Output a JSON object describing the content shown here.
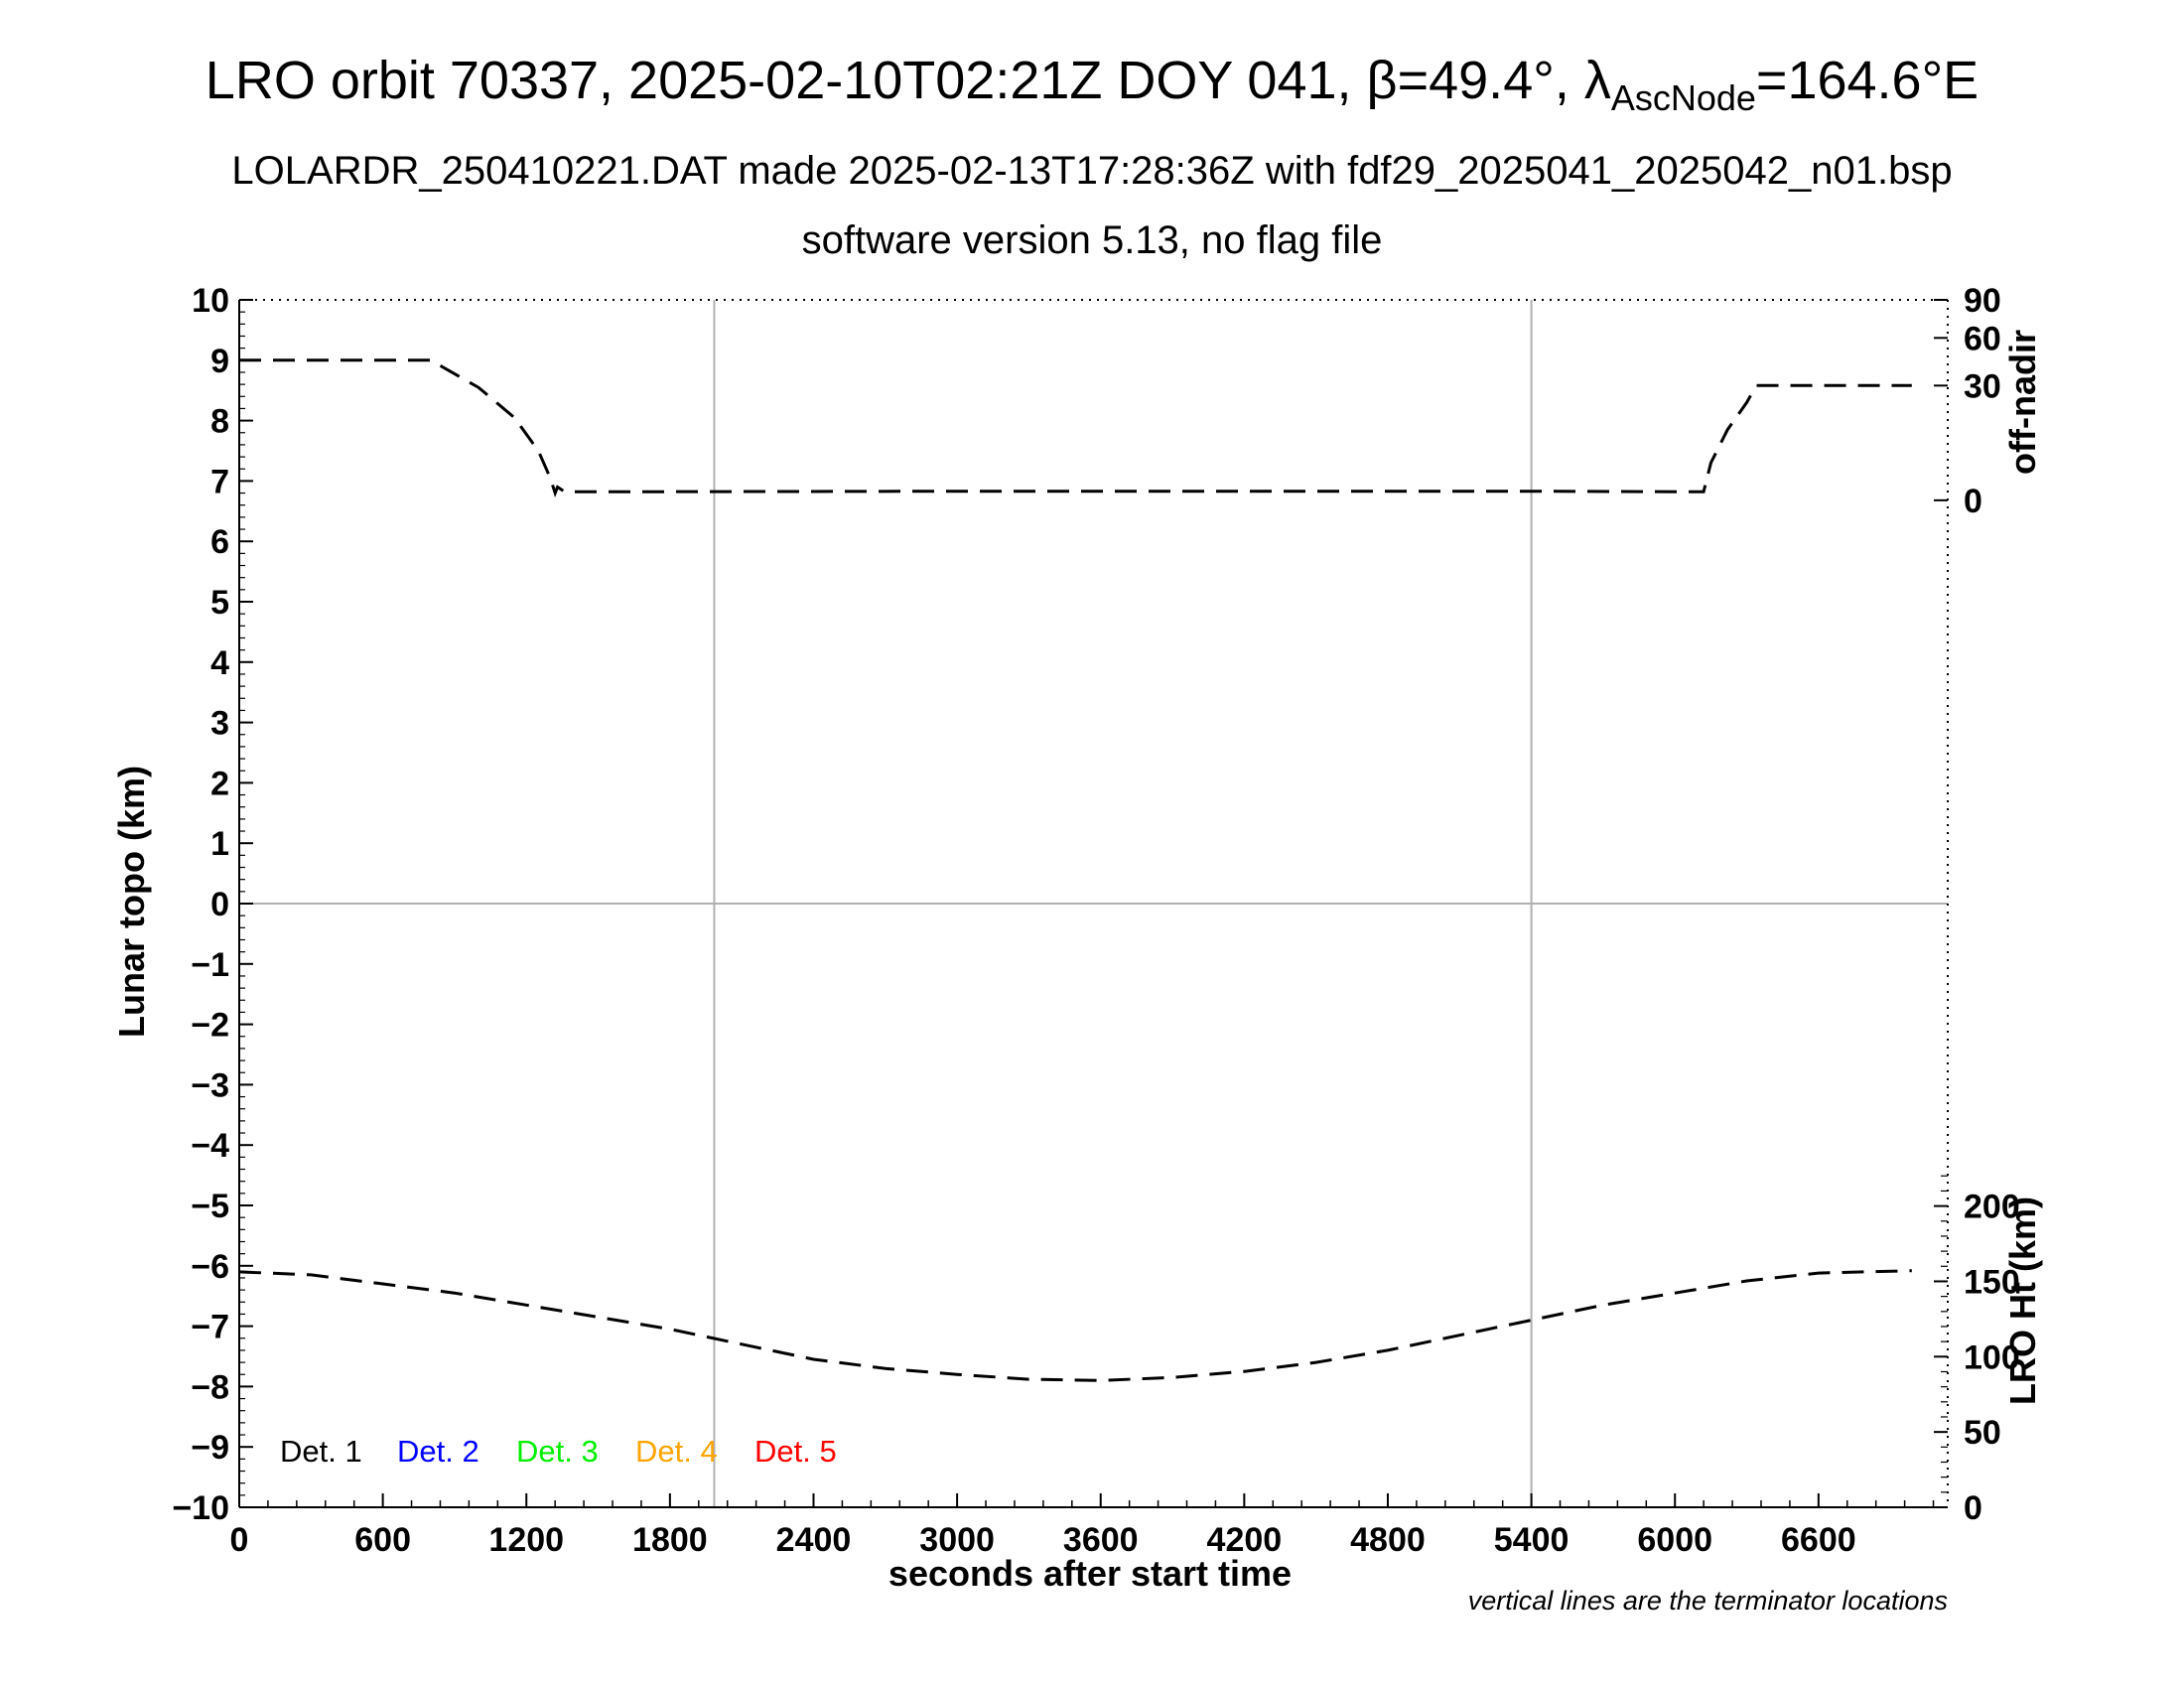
{
  "title": {
    "main_prefix": "LRO orbit 70337, 2025-02-10T02:21Z DOY 041, β=49.4°, λ",
    "main_sub": "AscNode",
    "main_suffix": "=164.6°E",
    "line2": "LOLARDR_250410221.DAT made 2025-02-13T17:28:36Z with fdf29_2025041_2025042_n01.bsp",
    "line3": "software version 5.13, no flag file"
  },
  "chart_data": {
    "type": "line",
    "xlabel": "seconds after start time",
    "ylabel_left": "Lunar topo (km)",
    "ylabel_right_top": "off-nadir",
    "ylabel_right_bottom": "LRO Ht (km)",
    "xlim": [
      0,
      7140
    ],
    "x_ticks": [
      "0",
      "600",
      "1200",
      "1800",
      "2400",
      "3000",
      "3600",
      "4200",
      "4800",
      "5400",
      "6000",
      "6600"
    ],
    "x_tick_values": [
      0,
      600,
      1200,
      1800,
      2400,
      3000,
      3600,
      4200,
      4800,
      5400,
      6000,
      6600
    ],
    "ylim_left": [
      -10,
      10
    ],
    "y_ticks_left": [
      "10",
      "9",
      "8",
      "7",
      "6",
      "5",
      "4",
      "3",
      "2",
      "1",
      "0",
      "−1",
      "−2",
      "−3",
      "−4",
      "−5",
      "−6",
      "−7",
      "−8",
      "−9",
      "−10"
    ],
    "y_tick_values_left": [
      10,
      9,
      8,
      7,
      6,
      5,
      4,
      3,
      2,
      1,
      0,
      -1,
      -2,
      -3,
      -4,
      -5,
      -6,
      -7,
      -8,
      -9,
      -10
    ],
    "off_nadir_ticks": [
      "90",
      "60",
      "30",
      "0"
    ],
    "off_nadir_tick_values": [
      90,
      60,
      30,
      0
    ],
    "height_ticks": [
      "200",
      "150",
      "100",
      "50",
      "0"
    ],
    "height_tick_values": [
      200,
      150,
      100,
      50,
      0
    ],
    "terminator_lines_x": [
      1985,
      5400
    ],
    "zero_line_y": 0,
    "legend": [
      {
        "label": "Det. 1",
        "color": "#000000"
      },
      {
        "label": "Det. 2",
        "color": "#0000ff"
      },
      {
        "label": "Det. 3",
        "color": "#00ee00"
      },
      {
        "label": "Det. 4",
        "color": "#ffa500"
      },
      {
        "label": "Det. 5",
        "color": "#ff0000"
      }
    ],
    "series": [
      {
        "axis": "off-nadir",
        "style": "dashed",
        "color": "#000000",
        "points": [
          [
            0,
            9.0
          ],
          [
            800,
            9.0
          ],
          [
            1000,
            8.55
          ],
          [
            1150,
            8.05
          ],
          [
            1250,
            7.5
          ],
          [
            1300,
            7.05
          ],
          [
            1320,
            6.8
          ],
          [
            1330,
            6.9
          ],
          [
            1360,
            6.82
          ],
          [
            1500,
            6.82
          ],
          [
            3000,
            6.83
          ],
          [
            5400,
            6.83
          ],
          [
            6120,
            6.82
          ],
          [
            6150,
            7.3
          ],
          [
            6220,
            7.85
          ],
          [
            6300,
            8.3
          ],
          [
            6340,
            8.58
          ],
          [
            6500,
            8.58
          ],
          [
            6990,
            8.58
          ]
        ]
      },
      {
        "axis": "LRO Ht (km)",
        "style": "dashed",
        "color": "#000000",
        "points": [
          [
            0,
            -6.1
          ],
          [
            300,
            -6.15
          ],
          [
            600,
            -6.3
          ],
          [
            900,
            -6.45
          ],
          [
            1200,
            -6.65
          ],
          [
            1500,
            -6.85
          ],
          [
            1800,
            -7.05
          ],
          [
            2100,
            -7.3
          ],
          [
            2400,
            -7.55
          ],
          [
            2700,
            -7.7
          ],
          [
            3000,
            -7.8
          ],
          [
            3300,
            -7.88
          ],
          [
            3600,
            -7.9
          ],
          [
            3900,
            -7.85
          ],
          [
            4200,
            -7.75
          ],
          [
            4500,
            -7.6
          ],
          [
            4800,
            -7.4
          ],
          [
            5100,
            -7.15
          ],
          [
            5400,
            -6.9
          ],
          [
            5700,
            -6.65
          ],
          [
            6000,
            -6.45
          ],
          [
            6300,
            -6.25
          ],
          [
            6600,
            -6.12
          ],
          [
            6990,
            -6.08
          ]
        ]
      }
    ]
  },
  "footnote": "vertical lines are the terminator locations"
}
